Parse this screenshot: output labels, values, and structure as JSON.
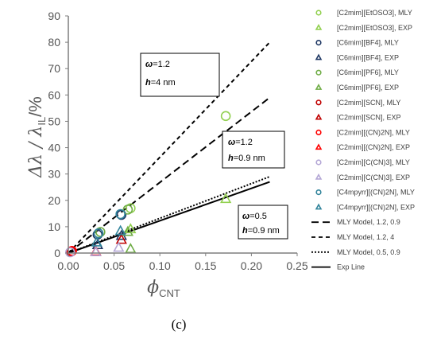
{
  "chart_data": {
    "type": "scatter",
    "caption": "(c)",
    "xlabel": {
      "main": "ϕ",
      "sub": "CNT"
    },
    "ylabel": {
      "main": "Δλ / λ",
      "sub": "IL",
      "suffix": "/%"
    },
    "xlim": [
      0,
      0.25
    ],
    "ylim": [
      0,
      90
    ],
    "xticks": [
      "0.00",
      "0.05",
      "0.10",
      "0.15",
      "0.20",
      "0.25"
    ],
    "yticks": [
      "0",
      "10",
      "20",
      "30",
      "40",
      "50",
      "60",
      "70",
      "80",
      "90"
    ],
    "grid": false,
    "legend_position": "right",
    "annotations": [
      {
        "omega_label": "ω",
        "omega_value": "=1.2",
        "h_label": "h",
        "h_value": "=4 nm"
      },
      {
        "omega_label": "ω",
        "omega_value": "=1.2",
        "h_label": "h",
        "h_value": "=0.9 nm"
      },
      {
        "omega_label": "ω",
        "omega_value": "=0.5",
        "h_label": "h",
        "h_value": "=0.9 nm"
      }
    ],
    "series": [
      {
        "name": "[C2mim][EtOSO3], MLY",
        "marker": "circle",
        "color": "#92d050",
        "points": [
          [
            0.068,
            17.0
          ],
          [
            0.172,
            52.0
          ]
        ]
      },
      {
        "name": "[C2mim][EtOSO3], EXP",
        "marker": "triangle",
        "color": "#92d050",
        "points": [
          [
            0.068,
            9.0
          ],
          [
            0.172,
            20.5
          ]
        ]
      },
      {
        "name": "[C6mim][BF4], MLY",
        "marker": "circle",
        "color": "#1f3864",
        "points": [
          [
            0.058,
            14.5
          ],
          [
            0.032,
            7.0
          ]
        ]
      },
      {
        "name": "[C6mim][BF4], EXP",
        "marker": "triangle",
        "color": "#1f3864",
        "points": [
          [
            0.058,
            6.5
          ],
          [
            0.032,
            3.0
          ]
        ]
      },
      {
        "name": "[C6mim][PF6], MLY",
        "marker": "circle",
        "color": "#70ad47",
        "points": [
          [
            0.065,
            16.5
          ],
          [
            0.035,
            8.0
          ]
        ]
      },
      {
        "name": "[C6mim][PF6], EXP",
        "marker": "triangle",
        "color": "#70ad47",
        "points": [
          [
            0.065,
            8.0
          ],
          [
            0.068,
            1.5
          ]
        ]
      },
      {
        "name": "[C2mim][SCN], MLY",
        "marker": "circle",
        "color": "#c00000",
        "points": [
          [
            0.003,
            0.5
          ]
        ]
      },
      {
        "name": "[C2mim][SCN], EXP",
        "marker": "triangle",
        "color": "#c00000",
        "points": [
          [
            0.058,
            5.0
          ]
        ]
      },
      {
        "name": "[C2mim][(CN)2N], MLY",
        "marker": "circle",
        "color": "#ff0000",
        "points": [
          [
            0.004,
            0.8
          ]
        ]
      },
      {
        "name": "[C2mim][(CN)2N], EXP",
        "marker": "triangle",
        "color": "#ff0000",
        "points": [
          [
            0.03,
            0.5
          ]
        ]
      },
      {
        "name": "[C2mim][C(CN)3], MLY",
        "marker": "circle",
        "color": "#b4a7d6",
        "points": [
          [
            0.002,
            0.3
          ]
        ]
      },
      {
        "name": "[C2mim][C(CN)3], EXP",
        "marker": "triangle",
        "color": "#b4a7d6",
        "points": [
          [
            0.03,
            0.3
          ],
          [
            0.055,
            2.0
          ]
        ]
      },
      {
        "name": "[C4mpyrr][(CN)2N], MLY",
        "marker": "circle",
        "color": "#31849b",
        "points": [
          [
            0.057,
            14.8
          ],
          [
            0.033,
            7.5
          ]
        ]
      },
      {
        "name": "[C4mpyrr][(CN)2N], EXP",
        "marker": "triangle",
        "color": "#31849b",
        "points": [
          [
            0.057,
            8.3
          ],
          [
            0.031,
            4.0
          ]
        ]
      }
    ],
    "lines": [
      {
        "name": "MLY Model, 1.2, 0.9",
        "style": "dashed",
        "color": "#000000",
        "x": [
          0,
          0.22
        ],
        "y": [
          0,
          59
        ]
      },
      {
        "name": "MLY Model, 1.2, 4",
        "style": "dashed-short",
        "color": "#000000",
        "x": [
          0,
          0.22
        ],
        "y": [
          0,
          80
        ]
      },
      {
        "name": "MLY Model, 0.5, 0.9",
        "style": "dotted",
        "color": "#000000",
        "x": [
          0,
          0.22
        ],
        "y": [
          0,
          29
        ]
      },
      {
        "name": "Exp Line",
        "style": "solid",
        "color": "#000000",
        "x": [
          0,
          0.22
        ],
        "y": [
          0,
          27
        ]
      }
    ]
  }
}
